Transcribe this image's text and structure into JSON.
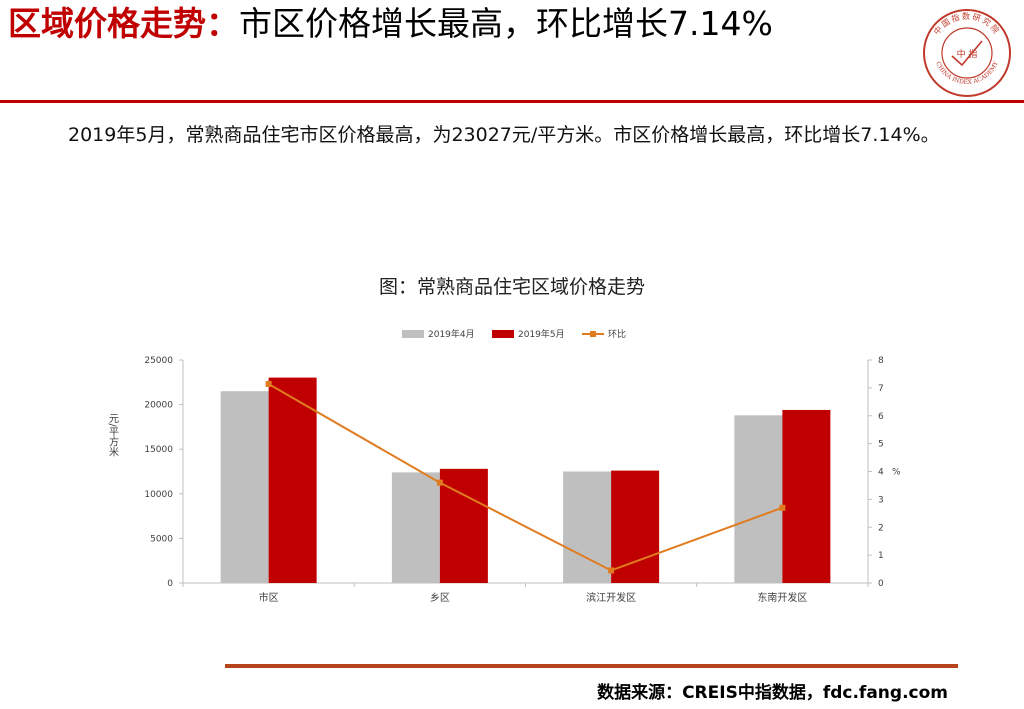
{
  "header": {
    "title_accent": "区域价格走势：",
    "title_rest": "市区价格增长最高，环比增长7.14%"
  },
  "logo": {
    "top_text": "中国指数研究院",
    "center_text": "中 指",
    "bottom_text": "CHINA INDEX ACADEMY",
    "color": "#c0392b"
  },
  "body": {
    "paragraph": "2019年5月，常熟商品住宅市区价格最高，为23027元/平方米。市区价格增长最高，环比增长7.14%。"
  },
  "chart_data": {
    "type": "bar",
    "title": "图：常熟商品住宅区域价格走势",
    "categories": [
      "市区",
      "乡区",
      "滨江开发区",
      "东南开发区"
    ],
    "series": [
      {
        "name": "2019年4月",
        "type": "bar",
        "axis": "left",
        "color": "#bfbfbf",
        "values": [
          21500,
          12400,
          12500,
          18800
        ]
      },
      {
        "name": "2019年5月",
        "type": "bar",
        "axis": "left",
        "color": "#c00000",
        "values": [
          23027,
          12800,
          12600,
          19400
        ]
      },
      {
        "name": "环比",
        "type": "line",
        "axis": "right",
        "color": "#e07b20",
        "values": [
          7.14,
          3.6,
          0.45,
          2.7
        ]
      }
    ],
    "ylabel": "元/平方米",
    "ylim": [
      0,
      25000
    ],
    "yticks": [
      "0",
      "5000",
      "10000",
      "15000",
      "20000",
      "25000"
    ],
    "y2label": "%",
    "y2lim": [
      0,
      8
    ],
    "y2ticks": [
      "0",
      "1",
      "2",
      "3",
      "4",
      "5",
      "6",
      "7",
      "8"
    ],
    "legend": "top",
    "grid": false
  },
  "footer": {
    "source": "数据来源：CREIS中指数据，fdc.fang.com"
  }
}
